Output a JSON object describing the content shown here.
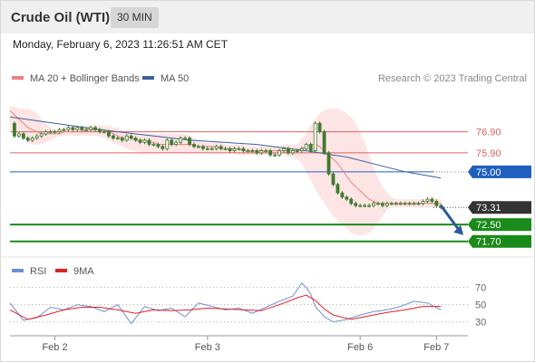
{
  "header": {
    "title": "Crude Oil (WTI)",
    "interval": "30 MIN",
    "datetime": "Monday, February 6, 2023 11:26:51 AM CET"
  },
  "colors": {
    "candle": "#3e7a2e",
    "ma20": "#f08080",
    "ma50": "#3b5fa0",
    "bollinger_fill": "#fde0e0",
    "resistance": "#e06060",
    "pivot": "#1f5fbf",
    "support": "#1a8a1a",
    "last_price": "#333333",
    "rsi": "#6b8fd6",
    "rsi_ma": "#e02020",
    "arrow": "#2a5a9a"
  },
  "chart_data": [
    {
      "type": "line",
      "title": "",
      "legend": [
        {
          "name": "MA 20 + Bollinger Bands",
          "color": "#f08080",
          "icon": "ma20-swatch"
        },
        {
          "name": "MA 50",
          "color": "#3b5fa0",
          "icon": "ma50-swatch"
        }
      ],
      "copyright": "Research © 2023 Trading Central",
      "ylim": [
        71.0,
        78.3
      ],
      "x_ticks": [
        {
          "label": "Feb 2",
          "x": 10
        },
        {
          "label": "Feb 3",
          "x": 44
        },
        {
          "label": "Feb 6",
          "x": 78
        },
        {
          "label": "Feb 7",
          "x": 95
        }
      ],
      "x_range": [
        0,
        102
      ],
      "close": [
        77.3,
        76.7,
        76.8,
        76.6,
        76.5,
        76.6,
        76.7,
        76.8,
        76.9,
        76.9,
        76.9,
        77.0,
        77.0,
        77.1,
        77.0,
        77.1,
        77.0,
        77.0,
        77.1,
        77.0,
        76.9,
        76.9,
        76.7,
        76.6,
        76.6,
        76.5,
        76.7,
        76.6,
        76.5,
        76.4,
        76.5,
        76.3,
        76.3,
        76.2,
        76.1,
        76.5,
        76.3,
        76.4,
        76.6,
        76.6,
        76.3,
        76.2,
        76.2,
        76.1,
        76.1,
        76.1,
        76.2,
        76.1,
        76.1,
        76.0,
        76.1,
        76.1,
        76.0,
        76.0,
        76.0,
        75.9,
        76.0,
        76.0,
        75.8,
        75.8,
        76.0,
        76.1,
        75.9,
        76.0,
        76.0,
        76.1,
        76.3,
        76.0,
        77.3,
        76.9,
        75.9,
        74.9,
        74.4,
        74.0,
        73.8,
        73.7,
        73.5,
        73.4,
        73.4,
        73.4,
        73.4,
        73.5,
        73.5,
        73.4,
        73.5,
        73.5,
        73.5,
        73.5,
        73.5,
        73.5,
        73.5,
        73.5,
        73.6,
        73.7,
        73.6,
        73.4,
        73.31
      ],
      "ma20": [
        77.9,
        77.7,
        77.5,
        77.3,
        77.1,
        77.0,
        76.9,
        76.8,
        76.8,
        76.8,
        76.8,
        76.8,
        76.9,
        76.9,
        76.9,
        76.9,
        76.9,
        77.0,
        77.0,
        77.0,
        77.0,
        77.0,
        76.9,
        76.8,
        76.7,
        76.6,
        76.6,
        76.6,
        76.5,
        76.5,
        76.5,
        76.4,
        76.4,
        76.3,
        76.3,
        76.3,
        76.3,
        76.3,
        76.3,
        76.3,
        76.3,
        76.3,
        76.2,
        76.2,
        76.2,
        76.2,
        76.2,
        76.1,
        76.1,
        76.1,
        76.1,
        76.1,
        76.0,
        76.0,
        76.0,
        76.0,
        76.0,
        76.0,
        76.0,
        76.0,
        76.0,
        76.0,
        76.0,
        76.0,
        76.0,
        76.1,
        76.2,
        76.3,
        76.3,
        76.2,
        76.0,
        75.8,
        75.6,
        75.4,
        75.1,
        74.8,
        74.5,
        74.3,
        74.1,
        73.9,
        73.7,
        73.6,
        73.5,
        73.5,
        73.5,
        73.5,
        73.5,
        73.5,
        73.5,
        73.5,
        73.5,
        73.5,
        73.5,
        73.5,
        73.5,
        73.5,
        73.5
      ],
      "bb_upper": [
        78.1,
        78.1,
        78.0,
        78.0,
        78.0,
        77.9,
        77.8,
        77.5,
        77.3,
        77.1,
        77.0,
        77.0,
        77.1,
        77.1,
        77.1,
        77.1,
        77.1,
        77.2,
        77.2,
        77.2,
        77.2,
        77.2,
        77.2,
        77.1,
        77.1,
        77.0,
        76.9,
        76.8,
        76.8,
        76.8,
        76.8,
        76.8,
        76.8,
        76.8,
        76.8,
        76.8,
        76.8,
        76.8,
        76.8,
        76.8,
        76.7,
        76.6,
        76.5,
        76.4,
        76.4,
        76.4,
        76.4,
        76.4,
        76.3,
        76.3,
        76.3,
        76.3,
        76.3,
        76.2,
        76.2,
        76.2,
        76.2,
        76.2,
        76.2,
        76.2,
        76.2,
        76.3,
        76.3,
        76.3,
        76.3,
        76.6,
        76.8,
        77.2,
        77.5,
        77.8,
        77.9,
        78.0,
        78.0,
        78.0,
        77.9,
        77.8,
        77.6,
        77.3,
        76.9,
        76.4,
        75.8,
        75.2,
        74.7,
        74.3,
        74.0,
        73.8,
        73.7,
        73.7,
        73.7,
        73.7,
        73.7,
        73.7,
        73.7,
        73.7,
        73.7,
        73.7,
        73.7
      ],
      "bb_lower": [
        77.0,
        76.9,
        76.8,
        76.6,
        76.4,
        76.3,
        76.3,
        76.3,
        76.4,
        76.5,
        76.6,
        76.7,
        76.7,
        76.7,
        76.7,
        76.7,
        76.7,
        76.7,
        76.7,
        76.7,
        76.7,
        76.6,
        76.5,
        76.4,
        76.3,
        76.2,
        76.1,
        76.0,
        76.0,
        75.9,
        75.9,
        75.9,
        75.9,
        75.9,
        75.9,
        75.9,
        75.9,
        75.9,
        75.9,
        75.9,
        75.9,
        75.9,
        75.9,
        75.9,
        75.9,
        75.9,
        75.9,
        75.9,
        75.9,
        75.9,
        75.9,
        75.8,
        75.8,
        75.8,
        75.8,
        75.8,
        75.8,
        75.8,
        75.8,
        75.8,
        75.8,
        75.8,
        75.7,
        75.7,
        75.6,
        75.4,
        75.0,
        74.6,
        74.2,
        73.8,
        73.5,
        73.2,
        72.9,
        72.7,
        72.5,
        72.3,
        72.1,
        72.0,
        72.0,
        72.0,
        72.1,
        72.3,
        72.6,
        72.9,
        73.2,
        73.3,
        73.3,
        73.3,
        73.3,
        73.3,
        73.3,
        73.3,
        73.3,
        73.3,
        73.3,
        73.3,
        73.3
      ],
      "ma50": {
        "x": [
          0,
          20,
          40,
          55,
          66,
          75,
          88,
          96
        ],
        "y": [
          77.6,
          77.0,
          76.5,
          76.3,
          76.0,
          75.7,
          75.0,
          74.7
        ]
      },
      "levels": [
        {
          "value": 76.9,
          "label": "76.90",
          "kind": "resistance"
        },
        {
          "value": 75.9,
          "label": "75.90",
          "kind": "resistance"
        },
        {
          "value": 75.0,
          "label": "75.00",
          "kind": "pivot"
        },
        {
          "value": 73.31,
          "label": "73.31",
          "kind": "last"
        },
        {
          "value": 72.5,
          "label": "72.50",
          "kind": "support"
        },
        {
          "value": 71.7,
          "label": "71.70",
          "kind": "support"
        }
      ],
      "forecast_arrow": {
        "x": [
          96,
          101
        ],
        "y": [
          73.4,
          72.0
        ]
      }
    },
    {
      "type": "line",
      "title": "",
      "legend": [
        {
          "name": "RSI",
          "color": "#6b8fd6",
          "icon": "rsi-swatch"
        },
        {
          "name": "9MA",
          "color": "#e02020",
          "icon": "rsi-ma-swatch"
        }
      ],
      "ylim": [
        15,
        78
      ],
      "y_ticks": [
        70,
        50,
        30
      ],
      "rsi": {
        "x": [
          0,
          3,
          6,
          9,
          12,
          15,
          18,
          21,
          24,
          27,
          30,
          33,
          36,
          39,
          42,
          45,
          48,
          51,
          54,
          57,
          60,
          63,
          65,
          66,
          67,
          68,
          70,
          72,
          75,
          78,
          81,
          84,
          87,
          90,
          93,
          96
        ],
        "y": [
          52,
          32,
          35,
          47,
          44,
          50,
          48,
          42,
          50,
          28,
          48,
          43,
          46,
          36,
          52,
          48,
          44,
          46,
          40,
          47,
          54,
          60,
          75,
          70,
          62,
          48,
          36,
          30,
          33,
          38,
          42,
          44,
          48,
          54,
          52,
          44
        ]
      },
      "rsi_ma": {
        "x": [
          0,
          4,
          8,
          12,
          16,
          20,
          24,
          28,
          32,
          36,
          40,
          44,
          48,
          52,
          56,
          60,
          64,
          66,
          68,
          70,
          72,
          76,
          80,
          84,
          88,
          92,
          96
        ],
        "y": [
          44,
          33,
          38,
          44,
          47,
          47,
          44,
          40,
          44,
          43,
          44,
          46,
          45,
          44,
          43,
          50,
          58,
          61,
          55,
          45,
          38,
          33,
          37,
          41,
          44,
          48,
          48
        ]
      }
    }
  ]
}
